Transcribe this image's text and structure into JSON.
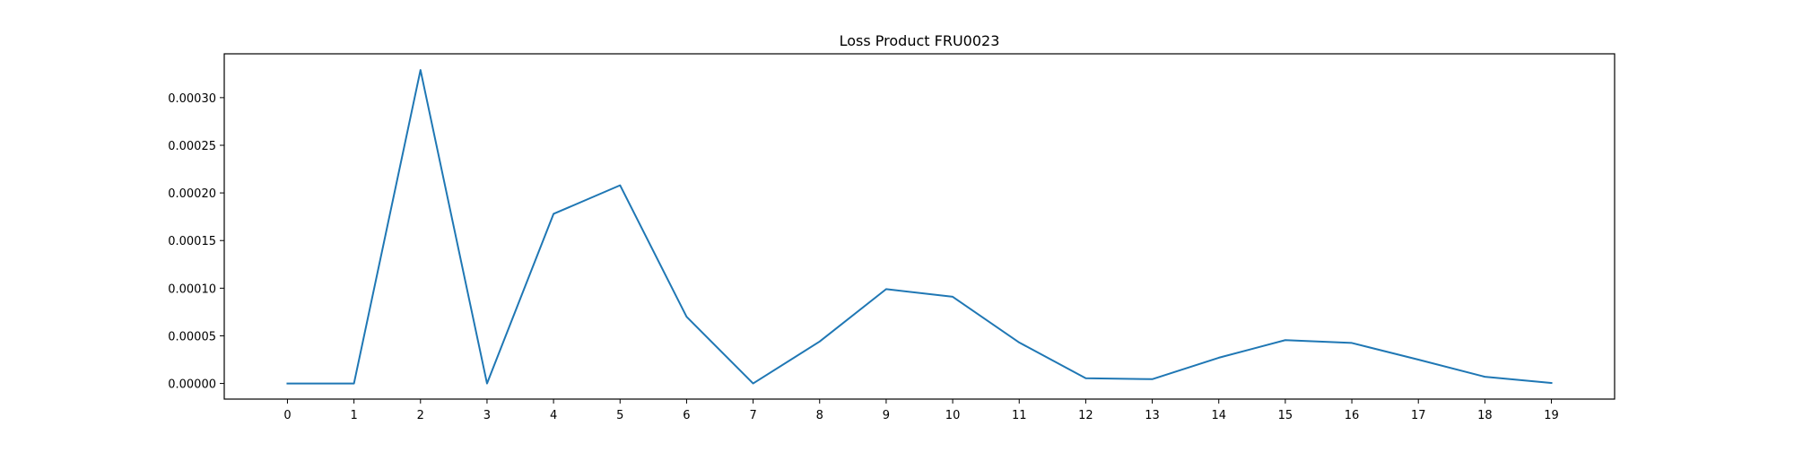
{
  "chart_data": {
    "type": "line",
    "title": "Loss Product FRU0023",
    "xlabel": "",
    "ylabel": "",
    "x": [
      0,
      1,
      2,
      3,
      4,
      5,
      6,
      7,
      8,
      9,
      10,
      11,
      12,
      13,
      14,
      15,
      16,
      17,
      18,
      19
    ],
    "xlim": [
      -0.95,
      19.95
    ],
    "ylim": [
      -1.64e-05,
      0.000346
    ],
    "xticks": [
      0,
      1,
      2,
      3,
      4,
      5,
      6,
      7,
      8,
      9,
      10,
      11,
      12,
      13,
      14,
      15,
      16,
      17,
      18,
      19
    ],
    "xtick_labels": [
      "0",
      "1",
      "2",
      "3",
      "4",
      "5",
      "6",
      "7",
      "8",
      "9",
      "10",
      "11",
      "12",
      "13",
      "14",
      "15",
      "16",
      "17",
      "18",
      "19"
    ],
    "yticks": [
      0.0,
      5e-05,
      0.0001,
      0.00015,
      0.0002,
      0.00025,
      0.0003
    ],
    "ytick_labels": [
      "0.00000",
      "0.00005",
      "0.00010",
      "0.00015",
      "0.00020",
      "0.00025",
      "0.00030"
    ],
    "grid": false,
    "legend": "none",
    "series": [
      {
        "color": "#1f77b4",
        "values": [
          0.0,
          0.0,
          0.000329,
          0.0,
          0.000178,
          0.000208,
          7e-05,
          0.0,
          4.4e-05,
          9.9e-05,
          9.1e-05,
          4.3e-05,
          5.5e-06,
          4.5e-06,
          2.7e-05,
          4.55e-05,
          4.25e-05,
          2.5e-05,
          7e-06,
          5e-07
        ]
      }
    ]
  }
}
